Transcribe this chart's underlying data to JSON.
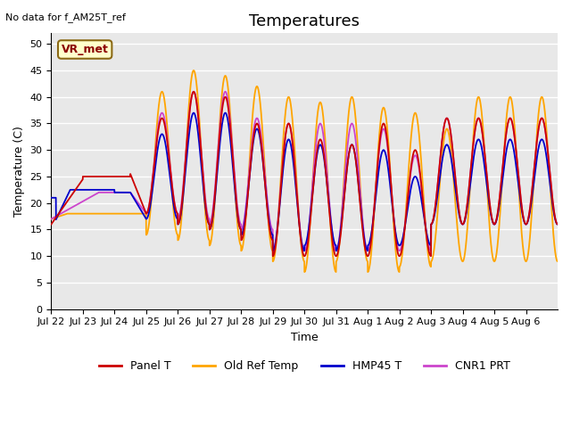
{
  "title": "Temperatures",
  "xlabel": "Time",
  "ylabel": "Temperature (C)",
  "note": "No data for f_AM25T_ref",
  "annotation": "VR_met",
  "ylim": [
    0,
    52
  ],
  "yticks": [
    0,
    5,
    10,
    15,
    20,
    25,
    30,
    35,
    40,
    45,
    50
  ],
  "x_labels": [
    "Jul 22",
    "Jul 23",
    "Jul 24",
    "Jul 25",
    "Jul 26",
    "Jul 27",
    "Jul 28",
    "Jul 29",
    "Jul 30",
    "Jul 31",
    "Aug 1",
    "Aug 2",
    "Aug 3",
    "Aug 4",
    "Aug 5",
    "Aug 6"
  ],
  "colors": {
    "panel_t": "#cc0000",
    "old_ref": "#ffa500",
    "hmp45": "#0000cc",
    "cnr1": "#cc44cc"
  },
  "legend": [
    "Panel T",
    "Old Ref Temp",
    "HMP45 T",
    "CNR1 PRT"
  ],
  "bg_color": "#e8e8e8",
  "title_fontsize": 13,
  "total_days": 16
}
